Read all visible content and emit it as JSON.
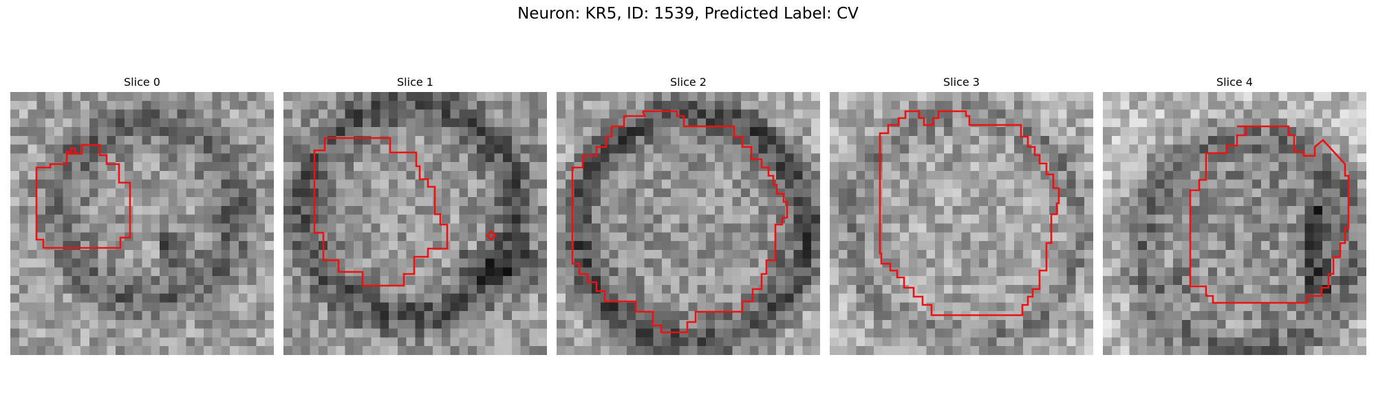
{
  "figure": {
    "title": "Neuron: KR5, ID: 1539, Predicted Label: CV"
  },
  "slices": [
    {
      "label": "Slice 0"
    },
    {
      "label": "Slice 1"
    },
    {
      "label": "Slice 2"
    },
    {
      "label": "Slice 3"
    },
    {
      "label": "Slice 4"
    }
  ],
  "colors": {
    "contour": "#ee1111",
    "background": "#ffffff"
  }
}
